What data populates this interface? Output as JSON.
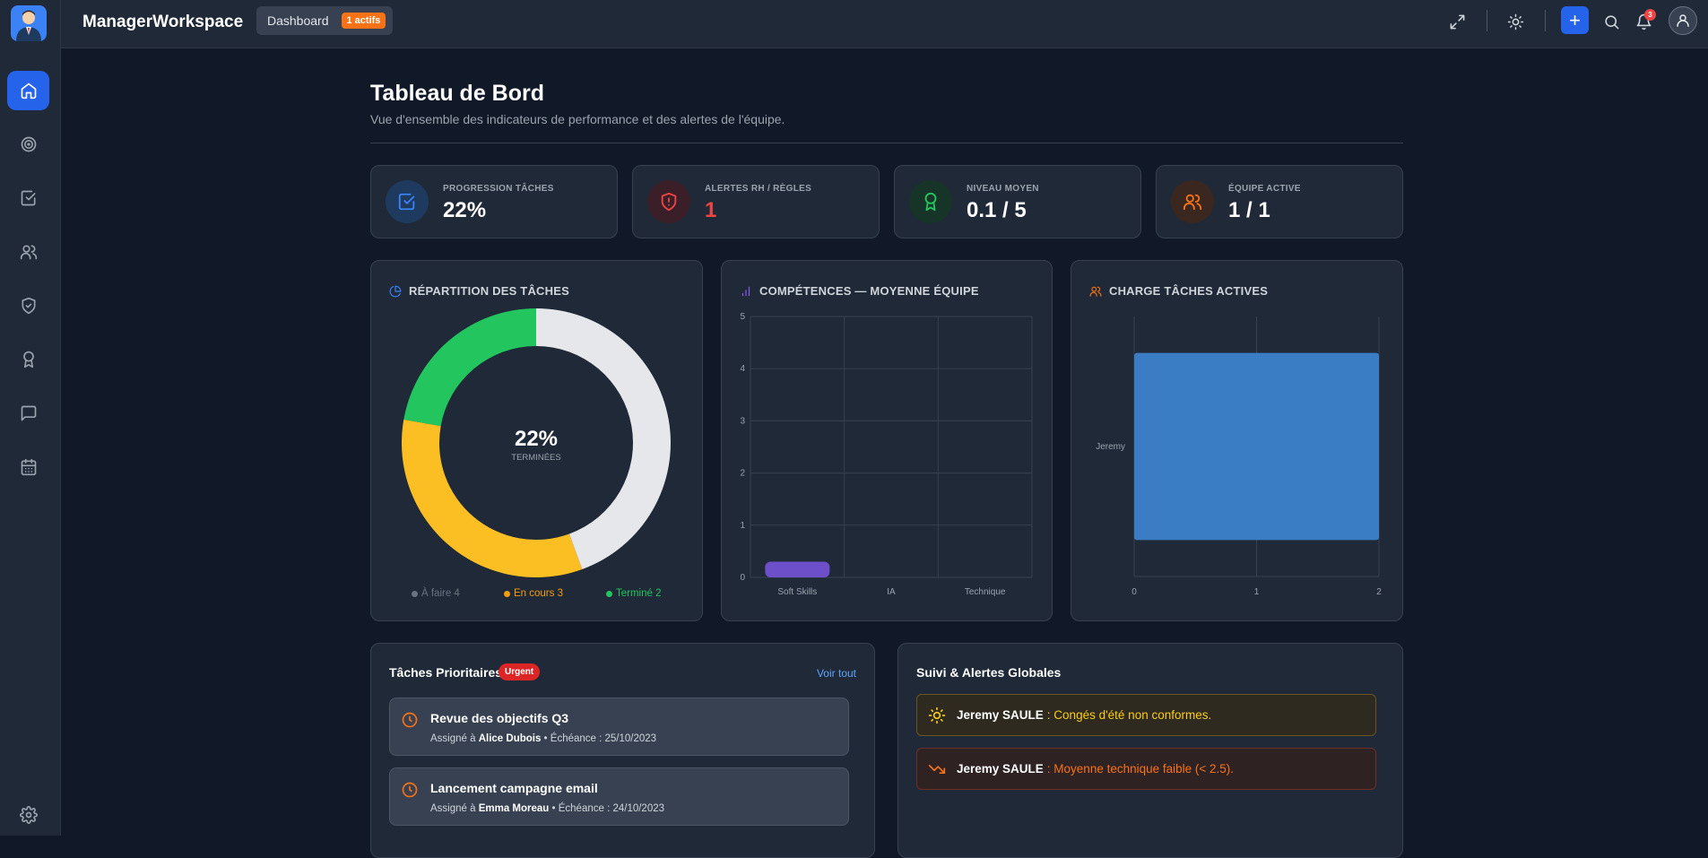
{
  "app": {
    "title": "ManagerWorkspace"
  },
  "breadcrumb": {
    "label": "Dashboard",
    "badge": "1 actifs"
  },
  "topbar": {
    "notifications_count": "3",
    "plus_label": "+"
  },
  "sidebar": {
    "items": [
      {
        "icon": "home-icon",
        "active": true
      },
      {
        "icon": "target-icon"
      },
      {
        "icon": "check-square-icon"
      },
      {
        "icon": "users-icon"
      },
      {
        "icon": "shield-check-icon"
      },
      {
        "icon": "award-icon"
      },
      {
        "icon": "message-icon"
      },
      {
        "icon": "calendar-icon"
      }
    ],
    "footer_icon": "settings-icon"
  },
  "page": {
    "title": "Tableau de Bord",
    "subtitle": "Vue d'ensemble des indicateurs de performance et des alertes de l'équipe."
  },
  "stats": [
    {
      "label": "PROGRESSION TÂCHES",
      "value": "22%",
      "icon": "check-square-icon",
      "color": "#3b82f6",
      "value_color": "#ffffff"
    },
    {
      "label": "ALERTES RH / RÈGLES",
      "value": "1",
      "icon": "shield-alert-icon",
      "color": "#ef4444",
      "value_color": "#ef4444"
    },
    {
      "label": "NIVEAU MOYEN",
      "value": "0.1 / 5",
      "icon": "award-icon",
      "color": "#22c55e",
      "value_color": "#ffffff"
    },
    {
      "label": "ÉQUIPE ACTIVE",
      "value": "1 / 1",
      "icon": "users-icon",
      "color": "#f97316",
      "value_color": "#ffffff"
    }
  ],
  "panels": {
    "repartition": {
      "title": "RÉPARTITION DES TÂCHES",
      "center_value": "22%",
      "center_label": "TERMINÉES"
    },
    "competences": {
      "title": "COMPÉTENCES — MOYENNE ÉQUIPE"
    },
    "charge": {
      "title": "CHARGE TÂCHES ACTIVES"
    }
  },
  "chart_data": [
    {
      "type": "pie",
      "title": "RÉPARTITION DES TÂCHES",
      "categories": [
        "À faire",
        "En cours",
        "Terminé"
      ],
      "values": [
        4,
        3,
        2
      ],
      "colors": [
        "#e5e7eb",
        "#fbbf24",
        "#22c55e"
      ],
      "legend_colors": [
        "#6b7280",
        "#f59e0b",
        "#22c55e"
      ],
      "legend_labels": [
        "À faire 4",
        "En cours 3",
        "Terminé 2"
      ],
      "legend": "bottom"
    },
    {
      "type": "bar",
      "title": "COMPÉTENCES — MOYENNE ÉQUIPE",
      "categories": [
        "Soft Skills",
        "IA",
        "Technique"
      ],
      "values": [
        0.3,
        0,
        0
      ],
      "ylim": [
        0,
        5
      ],
      "yticks": [
        "0",
        "1",
        "2",
        "3",
        "4",
        "5"
      ],
      "color": "#6d4fc9",
      "grid": true
    },
    {
      "type": "bar",
      "orientation": "horizontal",
      "title": "CHARGE TÂCHES ACTIVES",
      "categories": [
        "Jeremy"
      ],
      "values": [
        2
      ],
      "xlim": [
        0,
        2
      ],
      "xticks": [
        "0",
        "1",
        "2"
      ],
      "color": "#3b7dc4",
      "grid": true
    }
  ],
  "priority": {
    "title": "Tâches Prioritaires",
    "badge": "Urgent",
    "link": "Voir tout",
    "tasks": [
      {
        "title": "Revue des objectifs Q3",
        "assign_prefix": "Assigné à ",
        "assignee": "Alice Dubois",
        "due": " • Échéance : 25/10/2023"
      },
      {
        "title": "Lancement campagne email",
        "assign_prefix": "Assigné à ",
        "assignee": "Emma Moreau",
        "due": " • Échéance : 24/10/2023"
      }
    ]
  },
  "alerts": {
    "title": "Suivi & Alertes Globales",
    "items": [
      {
        "name": "Jeremy SAULE",
        "text": ": Congés d'été non conformes.",
        "icon": "sun-icon",
        "color": "#facc15"
      },
      {
        "name": "Jeremy SAULE",
        "text": ": Moyenne technique faible (< 2.5).",
        "icon": "trending-down-icon",
        "color": "#f97316"
      }
    ]
  }
}
